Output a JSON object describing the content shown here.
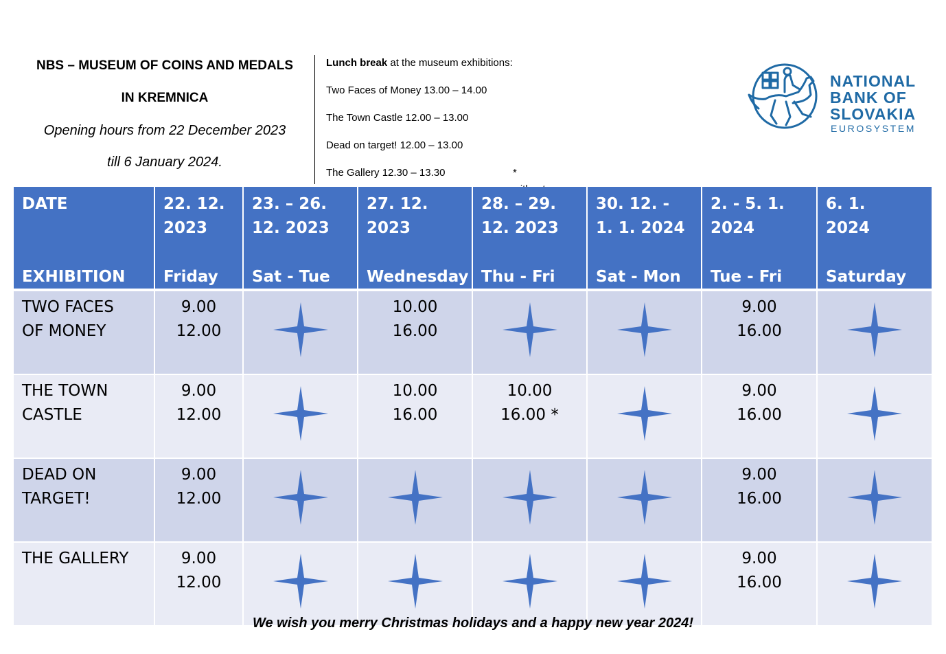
{
  "header": {
    "title_line1": "NBS – MUSEUM OF COINS AND MEDALS",
    "title_line2": "IN KREMNICA",
    "subtitle_line1": "Opening hours from 22 December 2023",
    "subtitle_line2": "till 6 January 2024."
  },
  "lunch": {
    "heading_bold": "Lunch break",
    "heading_rest": " at the museum exhibitions:",
    "items": [
      "Two Faces of Money 13.00 – 14.00",
      "The Town Castle 12.00 – 13.00",
      "Dead on target! 12.00 – 13.00",
      "The Gallery 12.30 – 13.30"
    ],
    "note": "* without lunch break"
  },
  "logo": {
    "line1": "NATIONAL",
    "line2": "BANK OF",
    "line3": "SLOVAKIA",
    "line4": "EUROSYSTEM",
    "brand_color": "#1f6aa5"
  },
  "colors": {
    "header_bg": "#4472c4",
    "row_odd": "#cfd5ea",
    "row_even": "#e9ebf5",
    "star": "#4472c4"
  },
  "table": {
    "header_top": [
      "DATE",
      "22. 12.\n2023",
      "23. – 26.\n12. 2023",
      "27. 12.\n2023",
      "28. – 29.\n12. 2023",
      "30. 12. -\n1. 1. 2024",
      "2. - 5. 1.\n2024",
      "6. 1.\n2024"
    ],
    "header_bottom": [
      "EXHIBITION",
      "Friday",
      "Sat - Tue",
      "Wednesday",
      "Thu - Fri",
      "Sat - Mon",
      "Tue - Fri",
      "Saturday"
    ],
    "rows": [
      {
        "exhibition": "TWO FACES\nOF MONEY",
        "cells": [
          "9.00\n12.00",
          "closed-star",
          "10.00\n16.00",
          "closed-star",
          "closed-star",
          "9.00\n16.00",
          "closed-star"
        ]
      },
      {
        "exhibition": "THE TOWN\nCASTLE",
        "cells": [
          "9.00\n12.00",
          "closed-star",
          "10.00\n16.00",
          "10.00\n16.00 *",
          "closed-star",
          "9.00\n16.00",
          "closed-star"
        ]
      },
      {
        "exhibition": "DEAD ON\nTARGET!",
        "cells": [
          "9.00\n12.00",
          "closed-star",
          "closed-star",
          "closed-star",
          "closed-star",
          "9.00\n16.00",
          "closed-star"
        ]
      },
      {
        "exhibition": "THE GALLERY",
        "cells": [
          "9.00\n12.00",
          "closed-star",
          "closed-star",
          "closed-star",
          "closed-star",
          "9.00\n16.00",
          "closed-star"
        ]
      }
    ]
  },
  "footer": "We wish you merry Christmas holidays and a happy new year 2024!"
}
